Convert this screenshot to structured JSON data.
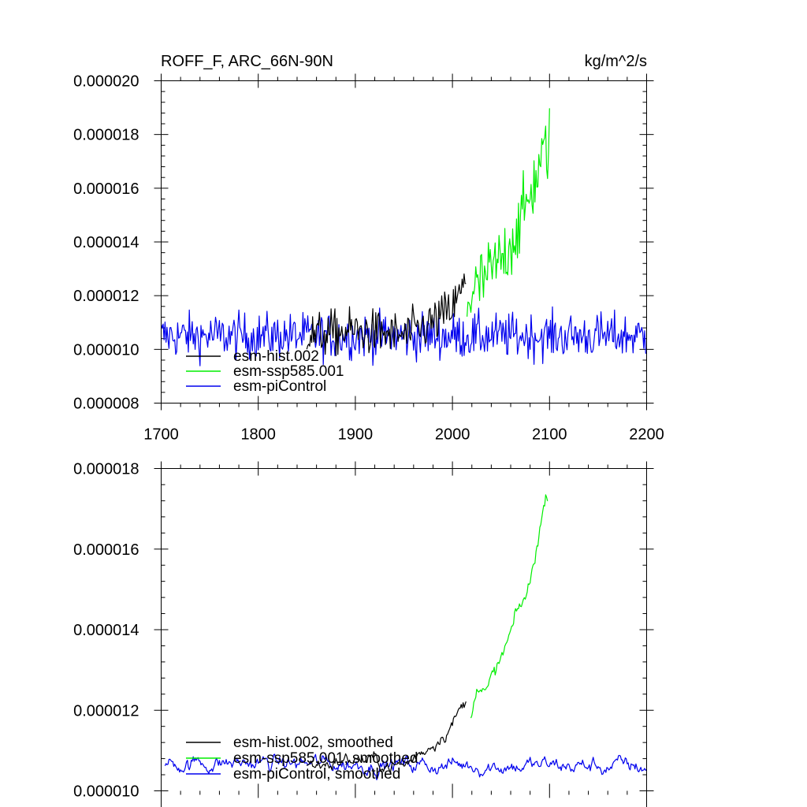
{
  "chart_data": [
    {
      "type": "line",
      "title_left": "ROFF_F, ARC_66N-90N",
      "title_right": "kg/m^2/s",
      "xlim": [
        1700,
        2200
      ],
      "ylim": [
        8e-06,
        2e-05
      ],
      "x_ticks": [
        "1700",
        "1800",
        "1900",
        "2000",
        "2100",
        "2200"
      ],
      "y_ticks": [
        "0.000008",
        "0.000010",
        "0.000012",
        "0.000014",
        "0.000016",
        "0.000018",
        "0.000020"
      ],
      "legend": [
        "esm-hist.002",
        "esm-ssp585.001",
        "esm-piControl"
      ],
      "colors": {
        "hist": "#000000",
        "ssp": "#00ee00",
        "pic": "#0000ee"
      },
      "series": [
        {
          "name": "esm-hist.002",
          "x_range": [
            1850,
            2014
          ],
          "approx_values": [
            {
              "x": 1850,
              "y": 1.05e-05
            },
            {
              "x": 1900,
              "y": 1.07e-05
            },
            {
              "x": 1950,
              "y": 1.05e-05
            },
            {
              "x": 1980,
              "y": 1.1e-05
            },
            {
              "x": 2000,
              "y": 1.15e-05
            },
            {
              "x": 2014,
              "y": 1.25e-05
            }
          ]
        },
        {
          "name": "esm-ssp585.001",
          "x_range": [
            2015,
            2100
          ],
          "approx_values": [
            {
              "x": 2015,
              "y": 1.18e-05
            },
            {
              "x": 2030,
              "y": 1.25e-05
            },
            {
              "x": 2050,
              "y": 1.33e-05
            },
            {
              "x": 2070,
              "y": 1.47e-05
            },
            {
              "x": 2085,
              "y": 1.63e-05
            },
            {
              "x": 2100,
              "y": 1.78e-05
            }
          ]
        },
        {
          "name": "esm-piControl",
          "x_range": [
            1700,
            2200
          ],
          "approx_values": [
            {
              "x": 1700,
              "y": 1.05e-05
            },
            {
              "x": 2200,
              "y": 1.05e-05
            }
          ]
        }
      ]
    },
    {
      "type": "line",
      "xlim": [
        1700,
        2200
      ],
      "ylim": [
        1e-05,
        1.8e-05
      ],
      "y_ticks": [
        "0.000010",
        "0.000012",
        "0.000014",
        "0.000016",
        "0.000018"
      ],
      "legend": [
        "esm-hist.002, smoothed",
        "esm-ssp585.001, smoothed",
        "esm-piControl, smoothed"
      ],
      "series": [
        {
          "name": "esm-hist.002, smoothed",
          "x_range": [
            1850,
            2014
          ],
          "approx_values": [
            {
              "x": 1850,
              "y": 1.06e-05
            },
            {
              "x": 1900,
              "y": 1.08e-05
            },
            {
              "x": 1950,
              "y": 1.06e-05
            },
            {
              "x": 1980,
              "y": 1.12e-05
            },
            {
              "x": 2000,
              "y": 1.17e-05
            },
            {
              "x": 2014,
              "y": 1.22e-05
            }
          ]
        },
        {
          "name": "esm-ssp585.001, smoothed",
          "x_range": [
            2019,
            2098
          ],
          "approx_values": [
            {
              "x": 2019,
              "y": 1.17e-05
            },
            {
              "x": 2025,
              "y": 1.28e-05
            },
            {
              "x": 2035,
              "y": 1.24e-05
            },
            {
              "x": 2050,
              "y": 1.32e-05
            },
            {
              "x": 2065,
              "y": 1.42e-05
            },
            {
              "x": 2080,
              "y": 1.51e-05
            },
            {
              "x": 2090,
              "y": 1.66e-05
            },
            {
              "x": 2098,
              "y": 1.74e-05
            }
          ]
        },
        {
          "name": "esm-piControl, smoothed",
          "x_range": [
            1704,
            2200
          ],
          "approx_values": [
            {
              "x": 1704,
              "y": 1.07e-05
            },
            {
              "x": 2200,
              "y": 1.06e-05
            }
          ]
        }
      ]
    }
  ]
}
